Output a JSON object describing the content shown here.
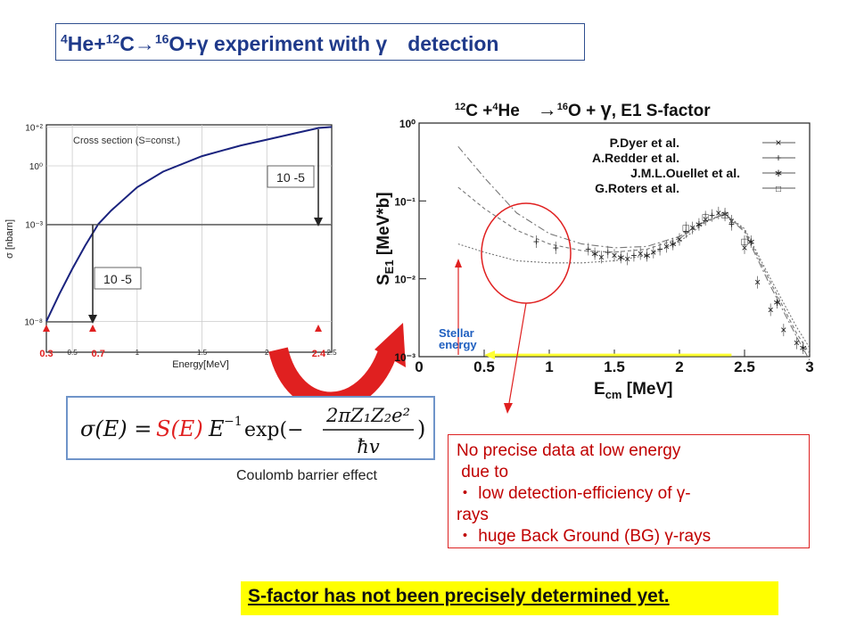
{
  "title": {
    "sup1": "4",
    "p1": "He+",
    "sup2": "12",
    "p2": "C→",
    "sup3": "16",
    "p3": "O+γ experiment with γ　detection"
  },
  "chart_data": [
    {
      "type": "line",
      "title": "Cross section (S=const.)",
      "xlabel": "Energy[MeV]",
      "ylabel": "σ [nbarn]",
      "x_ticks": [
        "0.3",
        "0.5",
        "0.7",
        "1",
        "1.5",
        "2",
        "2.4",
        "2.5"
      ],
      "x_ticks_red": [
        "0.3",
        "0.7",
        "2.4"
      ],
      "y_ticks": [
        "10⁺²",
        "10⁰",
        "10⁻³",
        "10⁻⁸"
      ],
      "xlim": [
        0.3,
        2.5
      ],
      "annotations": [
        "10 -5",
        "10 -5"
      ],
      "curve_color": "#1a237e",
      "series": [
        {
          "x": [
            0.3,
            0.4,
            0.5,
            0.6,
            0.7,
            0.8,
            1.0,
            1.2,
            1.5,
            1.8,
            2.0,
            2.2,
            2.4,
            2.5
          ],
          "y": [
            -8,
            -6.6,
            -5.3,
            -4.1,
            -3,
            -2.3,
            -1.1,
            -0.3,
            0.5,
            1.05,
            1.35,
            1.65,
            1.95,
            2
          ]
        }
      ]
    },
    {
      "type": "scatter",
      "title_parts": {
        "a": "12",
        "b": "C +",
        "c": "4",
        "d": "He",
        "arrow": "→",
        "e": "16",
        "f": "O + ",
        "g": "γ",
        "h": ", E1 S-factor"
      },
      "xlabel": "E",
      "xlabel_sub": "cm",
      "xlabel_unit": " [MeV]",
      "ylabel": "S",
      "ylabel_sub": "E1",
      "ylabel_unit": " [MeV*b]",
      "x_ticks": [
        "0",
        "0.5",
        "1",
        "1.5",
        "2",
        "2.5",
        "3"
      ],
      "y_ticks": [
        "10⁰",
        "10⁻¹",
        "10⁻²",
        "10⁻³"
      ],
      "xlim": [
        0,
        3
      ],
      "ylim_log": [
        -3,
        0
      ],
      "legend": [
        "P.Dyer et al.",
        "A.Redder et al.",
        "J.M.L.Ouellet et al.",
        "G.Roters et al."
      ],
      "legend_markers": [
        "×",
        "+",
        "∗",
        "□"
      ],
      "stellar_label_1": "Stellar",
      "stellar_label_2": "energy",
      "series": [
        {
          "name": "P.Dyer et al.",
          "x": [
            1.4,
            1.5,
            1.6,
            1.7,
            1.8,
            1.9,
            2.0,
            2.1,
            2.2,
            2.3,
            2.4,
            2.5,
            2.6,
            2.7,
            2.8,
            2.9
          ],
          "y": [
            0.019,
            0.02,
            0.018,
            0.021,
            0.022,
            0.026,
            0.032,
            0.045,
            0.058,
            0.07,
            0.055,
            0.025,
            0.009,
            0.004,
            0.0022,
            0.0015
          ]
        },
        {
          "name": "A.Redder et al.",
          "x": [
            0.9,
            1.05,
            1.3,
            1.45,
            1.65,
            1.85,
            2.05,
            2.25,
            2.4
          ],
          "y": [
            0.03,
            0.025,
            0.024,
            0.022,
            0.02,
            0.024,
            0.04,
            0.065,
            0.05
          ]
        },
        {
          "name": "J.M.L.Ouellet et al.",
          "x": [
            1.35,
            1.55,
            1.75,
            1.95,
            2.15,
            2.35,
            2.55,
            2.75,
            2.95
          ],
          "y": [
            0.021,
            0.019,
            0.02,
            0.028,
            0.05,
            0.068,
            0.03,
            0.005,
            0.0013
          ]
        },
        {
          "name": "G.Roters et al.",
          "x": [
            2.05,
            2.2,
            2.35,
            2.5
          ],
          "y": [
            0.045,
            0.062,
            0.066,
            0.03
          ]
        }
      ],
      "fit_curves": [
        {
          "x": [
            0.3,
            0.5,
            0.75,
            1.0,
            1.25,
            1.5,
            1.75,
            2.0,
            2.2,
            2.35,
            2.5,
            2.7,
            2.9,
            3.0
          ],
          "y": [
            0.5,
            0.2,
            0.07,
            0.038,
            0.028,
            0.025,
            0.026,
            0.035,
            0.055,
            0.068,
            0.04,
            0.008,
            0.0018,
            0.0009
          ]
        },
        {
          "x": [
            0.3,
            0.5,
            0.75,
            1.0,
            1.25,
            1.5,
            1.75,
            2.0,
            2.2,
            2.35,
            2.5,
            2.7,
            2.9,
            3.0
          ],
          "y": [
            0.15,
            0.08,
            0.042,
            0.028,
            0.023,
            0.022,
            0.024,
            0.033,
            0.055,
            0.068,
            0.042,
            0.009,
            0.002,
            0.0011
          ]
        },
        {
          "x": [
            0.3,
            0.5,
            0.75,
            1.0,
            1.25,
            1.5,
            1.75,
            2.0,
            2.2,
            2.35,
            2.5,
            2.7,
            2.9,
            3.0
          ],
          "y": [
            0.028,
            0.022,
            0.017,
            0.016,
            0.016,
            0.017,
            0.02,
            0.03,
            0.053,
            0.068,
            0.044,
            0.01,
            0.0024,
            0.0013
          ]
        }
      ],
      "stellar_energy_bar": {
        "x0": 0.5,
        "x1": 2.4,
        "y": 0.00105,
        "color": "#ffff33"
      }
    }
  ],
  "formula": {
    "lhs": "σ(E) = ",
    "s": "S(E)",
    "mid": "E",
    "mid_sup": "−1",
    "exp": "exp(−",
    "num": "2πZ₁Z₂e²",
    "den": "ħv",
    "close": ")"
  },
  "coulomb_label": "Coulomb barrier effect",
  "note": {
    "line1": "No precise data at low energy",
    "line2": " due to",
    "line3": "・ low detection-efficiency of γ-",
    "line4": "rays",
    "line5": "・ huge Back Ground (BG) γ-rays"
  },
  "conclusion": "S-factor has not been precisely determined yet.",
  "colors": {
    "title": "#1f3a8a",
    "accent_red": "#e02020",
    "note_red": "#c00000",
    "highlight": "#ffff00",
    "formula_border": "#6f94c9"
  }
}
